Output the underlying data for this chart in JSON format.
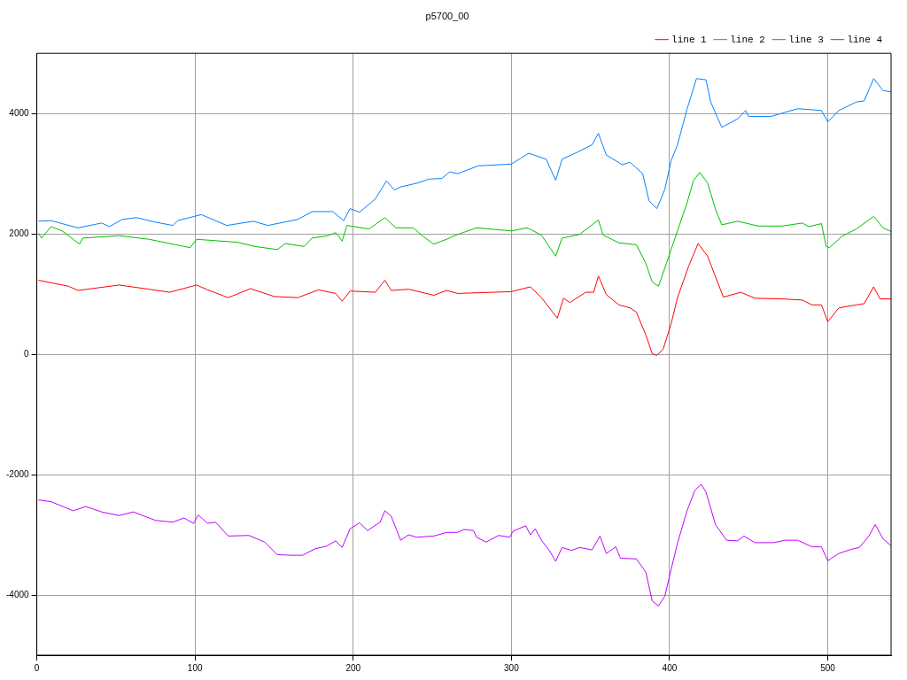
{
  "chart_data": {
    "type": "line",
    "title": "p5700_00",
    "xlim": [
      0,
      540
    ],
    "xticks": [
      0,
      100,
      200,
      300,
      400,
      500
    ],
    "ylim": [
      -5000,
      5000
    ],
    "yticks": [
      -4000,
      -2000,
      0,
      2000,
      4000
    ],
    "grid": true,
    "legend": "top right",
    "marker": "none",
    "line_style": "solid",
    "series": [
      {
        "name": "line 1",
        "color": "#ff0000",
        "x": [
          1,
          20,
          26,
          52,
          71,
          84,
          101,
          108,
          121,
          135,
          150,
          165,
          178,
          189,
          193,
          198,
          214,
          220,
          224,
          235,
          251,
          259,
          266,
          300,
          312,
          319,
          329,
          333,
          337,
          347,
          352,
          355,
          360,
          368,
          375,
          379,
          385,
          389,
          392,
          396,
          401,
          405,
          412,
          418,
          424,
          434,
          445,
          454,
          471,
          484,
          490,
          496,
          500,
          507,
          518,
          523,
          529,
          533,
          540
        ],
        "values": [
          1230,
          1130,
          1060,
          1150,
          1080,
          1030,
          1150,
          1070,
          940,
          1090,
          960,
          940,
          1070,
          1010,
          880,
          1050,
          1030,
          1230,
          1060,
          1080,
          980,
          1060,
          1010,
          1040,
          1120,
          940,
          600,
          930,
          860,
          1030,
          1030,
          1300,
          990,
          820,
          770,
          700,
          320,
          10,
          -20,
          90,
          510,
          940,
          1460,
          1840,
          1630,
          950,
          1030,
          930,
          920,
          900,
          820,
          820,
          540,
          770,
          820,
          840,
          1120,
          920,
          920
        ]
      },
      {
        "name": "line 2",
        "color": "#00c000",
        "x": [
          1,
          3,
          9,
          16,
          27,
          29,
          52,
          71,
          97,
          101,
          127,
          138,
          152,
          157,
          169,
          174,
          184,
          189,
          193,
          196,
          210,
          220,
          227,
          238,
          244,
          251,
          259,
          266,
          278,
          300,
          310,
          319,
          328,
          332,
          343,
          355,
          358,
          368,
          379,
          385,
          389,
          393,
          398,
          405,
          411,
          415,
          419,
          424,
          429,
          433,
          443,
          456,
          471,
          484,
          488,
          496,
          499,
          501,
          509,
          518,
          529,
          535,
          540
        ],
        "values": [
          2010,
          1930,
          2120,
          2050,
          1830,
          1930,
          1970,
          1910,
          1770,
          1910,
          1860,
          1790,
          1740,
          1840,
          1790,
          1930,
          1970,
          2020,
          1880,
          2140,
          2080,
          2270,
          2100,
          2100,
          1960,
          1830,
          1910,
          1990,
          2100,
          2050,
          2100,
          1980,
          1630,
          1930,
          1990,
          2230,
          1980,
          1850,
          1820,
          1510,
          1200,
          1130,
          1510,
          2050,
          2510,
          2880,
          3020,
          2850,
          2410,
          2150,
          2210,
          2130,
          2130,
          2180,
          2120,
          2170,
          1790,
          1770,
          1960,
          2080,
          2290,
          2100,
          2040
        ]
      },
      {
        "name": "line 3",
        "color": "#0080ff",
        "x": [
          1,
          9,
          26,
          41,
          46,
          54,
          63,
          74,
          86,
          89,
          104,
          120,
          137,
          146,
          165,
          174,
          187,
          194,
          198,
          204,
          214,
          221,
          226,
          230,
          240,
          248,
          256,
          261,
          266,
          279,
          300,
          311,
          322,
          328,
          332,
          342,
          351,
          355,
          360,
          370,
          375,
          383,
          387,
          392,
          397,
          401,
          405,
          411,
          417,
          423,
          426,
          433,
          443,
          448,
          450,
          464,
          481,
          496,
          500,
          507,
          518,
          523,
          529,
          535,
          540
        ],
        "values": [
          2210,
          2220,
          2100,
          2180,
          2120,
          2240,
          2270,
          2200,
          2140,
          2220,
          2320,
          2140,
          2210,
          2140,
          2240,
          2370,
          2370,
          2220,
          2420,
          2360,
          2580,
          2880,
          2730,
          2780,
          2840,
          2910,
          2920,
          3030,
          3000,
          3130,
          3160,
          3340,
          3240,
          2890,
          3240,
          3360,
          3480,
          3670,
          3310,
          3150,
          3190,
          3000,
          2550,
          2420,
          2740,
          3220,
          3480,
          4070,
          4580,
          4560,
          4190,
          3770,
          3910,
          4050,
          3950,
          3950,
          4080,
          4050,
          3860,
          4050,
          4190,
          4210,
          4580,
          4380,
          4360
        ]
      },
      {
        "name": "line 4",
        "color": "#c000ff",
        "x": [
          1,
          9,
          23,
          31,
          41,
          52,
          61,
          75,
          86,
          93,
          99,
          102,
          108,
          113,
          121,
          134,
          144,
          152,
          161,
          168,
          176,
          183,
          189,
          193,
          198,
          204,
          209,
          217,
          220,
          224,
          230,
          235,
          240,
          251,
          259,
          266,
          270,
          276,
          278,
          284,
          292,
          299,
          301,
          309,
          312,
          315,
          319,
          324,
          328,
          332,
          338,
          343,
          351,
          356,
          360,
          366,
          369,
          379,
          385,
          389,
          393,
          397,
          401,
          405,
          411,
          416,
          420,
          423,
          429,
          436,
          443,
          447,
          454,
          466,
          473,
          481,
          490,
          496,
          500,
          507,
          515,
          520,
          526,
          530,
          535,
          540
        ],
        "values": [
          -2420,
          -2450,
          -2600,
          -2530,
          -2620,
          -2680,
          -2620,
          -2760,
          -2790,
          -2720,
          -2810,
          -2670,
          -2810,
          -2790,
          -3020,
          -3010,
          -3120,
          -3330,
          -3340,
          -3340,
          -3230,
          -3190,
          -3100,
          -3210,
          -2900,
          -2800,
          -2930,
          -2790,
          -2600,
          -2690,
          -3090,
          -3000,
          -3040,
          -3020,
          -2960,
          -2960,
          -2910,
          -2930,
          -3040,
          -3120,
          -3010,
          -3040,
          -2940,
          -2850,
          -3000,
          -2900,
          -3090,
          -3260,
          -3440,
          -3210,
          -3260,
          -3210,
          -3250,
          -3020,
          -3310,
          -3200,
          -3390,
          -3400,
          -3620,
          -4100,
          -4180,
          -4020,
          -3570,
          -3140,
          -2600,
          -2260,
          -2160,
          -2290,
          -2830,
          -3090,
          -3100,
          -3020,
          -3130,
          -3130,
          -3090,
          -3090,
          -3200,
          -3200,
          -3430,
          -3310,
          -3240,
          -3210,
          -3020,
          -2830,
          -3070,
          -3180
        ]
      }
    ]
  }
}
